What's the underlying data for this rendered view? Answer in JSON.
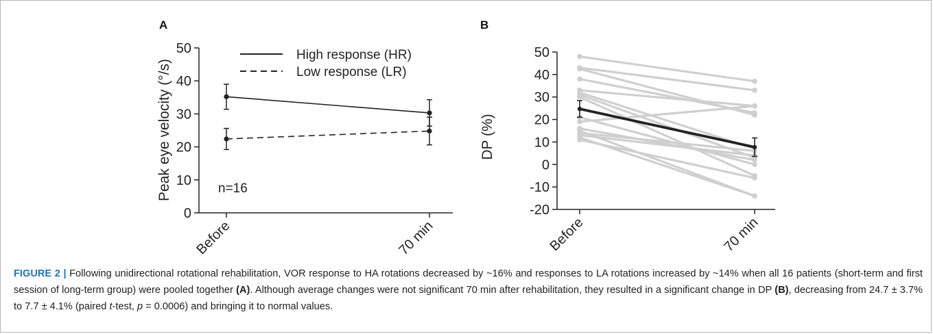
{
  "chart_data": [
    {
      "type": "line",
      "panel_label": "A",
      "categories": [
        "Before",
        "70 min"
      ],
      "ylabel": "Peak eye velocity (°/s)",
      "ylim": [
        0,
        50
      ],
      "yticks": [
        "0",
        "10",
        "20",
        "30",
        "40",
        "50"
      ],
      "annotation": "n=16",
      "legend_position": "top",
      "series": [
        {
          "name": "High response (HR)",
          "style": "solid",
          "color": "#222222",
          "values": [
            35.2,
            30.3
          ],
          "err": [
            3.8,
            4.0
          ]
        },
        {
          "name": "Low response (LR)",
          "style": "dashed",
          "color": "#222222",
          "values": [
            22.4,
            24.8
          ],
          "err": [
            3.2,
            4.2
          ]
        }
      ]
    },
    {
      "type": "line",
      "panel_label": "B",
      "categories": [
        "Before",
        "70 min"
      ],
      "ylabel": "DP (%)",
      "ylim": [
        -20,
        50
      ],
      "yticks": [
        "-20",
        "-10",
        "0",
        "10",
        "20",
        "30",
        "40",
        "50"
      ],
      "individual_color": "#cfcfcf",
      "mean_color": "#222222",
      "individual": [
        [
          48,
          37
        ],
        [
          43,
          33
        ],
        [
          42.5,
          22
        ],
        [
          38,
          23
        ],
        [
          33,
          26
        ],
        [
          32,
          7
        ],
        [
          31,
          3
        ],
        [
          30,
          -5
        ],
        [
          21,
          0
        ],
        [
          19,
          26
        ],
        [
          16,
          2
        ],
        [
          15,
          -14
        ],
        [
          14,
          6
        ],
        [
          13,
          4
        ],
        [
          12,
          -14
        ],
        [
          11,
          -6
        ]
      ],
      "mean": {
        "values": [
          24.7,
          7.7
        ],
        "err": [
          3.7,
          4.1
        ]
      }
    }
  ],
  "caption": {
    "figure_label": "FIGURE 2 |",
    "s1": " Following unidirectional rotational rehabilitation, VOR response to HA rotations decreased by ~16% and responses to LA rotations increased by ~14% when all 16 patients (short-term and first session of long-term group) were pooled together ",
    "ref_a": "(A)",
    "s2": ". Although average changes were not significant 70 min after rehabilitation, they resulted in a significant change in DP ",
    "ref_b": "(B)",
    "s3": ", decreasing from 24.7 ± 3.7% to 7.7 ± 4.1% (paired ",
    "t_italic": "t",
    "s4": "-test, ",
    "p_italic": "p",
    "s5": " = 0.0006) and bringing it to normal values."
  }
}
